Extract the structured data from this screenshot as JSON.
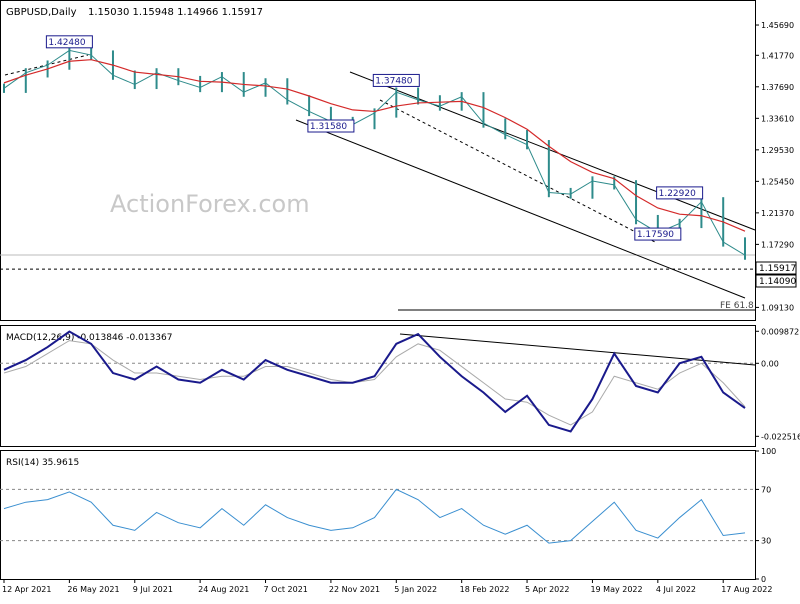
{
  "header": {
    "symbol_label": "GBPUSD,Daily",
    "ohlc": "1.15030 1.15948 1.14966 1.15917"
  },
  "watermark": "ActionForex.com",
  "colors": {
    "price": "#2e8b8b",
    "ma": "#d42a2a",
    "macd": "#1a1a8c",
    "signal": "#aaaaaa",
    "rsi": "#3a8fd0",
    "current_price_box": "#000000",
    "annotation_box": "#1a1a8c"
  },
  "chart_data": [
    {
      "type": "line",
      "name": "price",
      "title": "GBPUSD,Daily",
      "ylim": [
        1.075,
        1.488
      ],
      "y_ticks": [
        "1.45690",
        "1.41770",
        "1.37690",
        "1.33610",
        "1.29530",
        "1.25450",
        "1.21370",
        "1.17290",
        "1.13210",
        "1.09130"
      ],
      "x_ticks": [
        "12 Apr 2021",
        "26 May 2021",
        "9 Jul 2021",
        "24 Aug 2021",
        "7 Oct 2021",
        "22 Nov 2021",
        "5 Jan 2022",
        "18 Feb 2022",
        "5 Apr 2022",
        "19 May 2022",
        "4 Jul 2022",
        "17 Aug 2022"
      ],
      "x": [
        "12 Apr 2021",
        "26 Apr 2021",
        "10 May 2021",
        "26 May 2021",
        "9 Jun 2021",
        "23 Jun 2021",
        "9 Jul 2021",
        "23 Jul 2021",
        "6 Aug 2021",
        "24 Aug 2021",
        "7 Sep 2021",
        "21 Sep 2021",
        "7 Oct 2021",
        "21 Oct 2021",
        "4 Nov 2021",
        "22 Nov 2021",
        "6 Dec 2021",
        "20 Dec 2021",
        "5 Jan 2022",
        "19 Jan 2022",
        "2 Feb 2022",
        "18 Feb 2022",
        "4 Mar 2022",
        "18 Mar 2022",
        "5 Apr 2022",
        "19 Apr 2022",
        "3 May 2022",
        "19 May 2022",
        "2 Jun 2022",
        "16 Jun 2022",
        "4 Jul 2022",
        "18 Jul 2022",
        "1 Aug 2022",
        "17 Aug 2022",
        "25 Aug 2022"
      ],
      "series": [
        {
          "values": [
            1.375,
            1.395,
            1.405,
            1.424,
            1.418,
            1.392,
            1.38,
            1.395,
            1.385,
            1.376,
            1.39,
            1.37,
            1.382,
            1.36,
            1.345,
            1.332,
            1.328,
            1.343,
            1.37,
            1.36,
            1.352,
            1.364,
            1.33,
            1.315,
            1.302,
            1.24,
            1.238,
            1.255,
            1.25,
            1.205,
            1.188,
            1.2,
            1.228,
            1.176,
            1.159
          ]
        },
        {
          "values": [
            1.382,
            1.392,
            1.4,
            1.41,
            1.412,
            1.405,
            1.396,
            1.393,
            1.39,
            1.384,
            1.383,
            1.38,
            1.378,
            1.374,
            1.365,
            1.355,
            1.347,
            1.345,
            1.352,
            1.356,
            1.357,
            1.358,
            1.35,
            1.337,
            1.322,
            1.3,
            1.28,
            1.266,
            1.258,
            1.236,
            1.22,
            1.212,
            1.21,
            1.202,
            1.19
          ]
        }
      ],
      "annotations": [
        {
          "label": "1.42480",
          "x": "26 May 2021",
          "y": 1.4248
        },
        {
          "label": "1.37480",
          "x": "5 Jan 2022",
          "y": 1.3748
        },
        {
          "label": "1.31580",
          "x": "22 Nov 2021",
          "y": 1.3158
        },
        {
          "label": "1.22920",
          "x": "18 Jul 2022",
          "y": 1.2292
        },
        {
          "label": "1.17590",
          "x": "4 Jul 2022",
          "y": 1.1759
        }
      ],
      "current_price_label": "1.15917",
      "level_label": "1.14090",
      "fe_label": "FE 61.8"
    },
    {
      "type": "line",
      "name": "macd",
      "title": "MACD(12,26,9) -0.013846 -0.013367",
      "ylim": [
        -0.0255,
        0.0115
      ],
      "y_ticks": [
        "0.009872",
        "0.00",
        "-0.022516"
      ],
      "series": [
        {
          "values": [
            -0.002,
            0.001,
            0.005,
            0.0098,
            0.006,
            -0.003,
            -0.005,
            -0.001,
            -0.005,
            -0.006,
            -0.002,
            -0.005,
            0.001,
            -0.002,
            -0.004,
            -0.006,
            -0.006,
            -0.004,
            0.006,
            0.009,
            0.002,
            -0.004,
            -0.009,
            -0.015,
            -0.01,
            -0.019,
            -0.021,
            -0.011,
            0.003,
            -0.007,
            -0.009,
            0.0,
            0.002,
            -0.009,
            -0.0138
          ]
        },
        {
          "values": [
            -0.003,
            -0.001,
            0.003,
            0.007,
            0.006,
            0.001,
            -0.003,
            -0.003,
            -0.004,
            -0.005,
            -0.004,
            -0.004,
            -0.001,
            -0.001,
            -0.003,
            -0.005,
            -0.006,
            -0.005,
            0.002,
            0.006,
            0.004,
            -0.001,
            -0.006,
            -0.011,
            -0.012,
            -0.016,
            -0.019,
            -0.015,
            -0.004,
            -0.006,
            -0.008,
            -0.003,
            0.0,
            -0.006,
            -0.0134
          ]
        }
      ]
    },
    {
      "type": "line",
      "name": "rsi",
      "title": "RSI(14) 35.9615",
      "ylim": [
        0,
        100
      ],
      "y_ticks": [
        "100",
        "70",
        "30",
        "0"
      ],
      "series": [
        {
          "values": [
            55,
            60,
            62,
            68,
            60,
            42,
            38,
            52,
            44,
            40,
            55,
            42,
            58,
            48,
            42,
            38,
            40,
            48,
            70,
            62,
            48,
            55,
            42,
            35,
            42,
            28,
            30,
            45,
            60,
            38,
            32,
            48,
            62,
            34,
            36
          ]
        }
      ]
    }
  ]
}
